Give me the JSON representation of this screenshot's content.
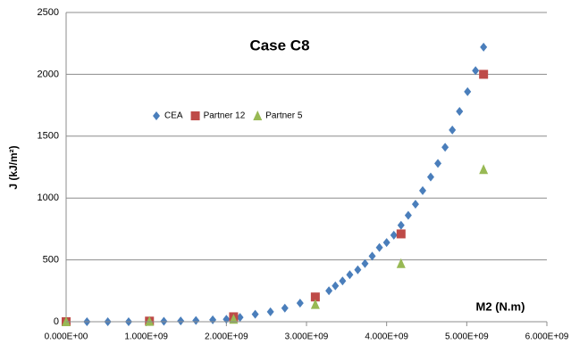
{
  "chart_data": {
    "type": "scatter",
    "title": "Case C8",
    "x_label": "M2 (N.m)",
    "y_label": "J (kJ/m²)",
    "xlim": [
      0,
      6000000000
    ],
    "ylim": [
      0,
      2500
    ],
    "xticks": [
      {
        "value": 0,
        "label": "0.000E+00"
      },
      {
        "value": 1000000000,
        "label": "1.000E+09"
      },
      {
        "value": 2000000000,
        "label": "2.000E+09"
      },
      {
        "value": 3000000000,
        "label": "3.000E+09"
      },
      {
        "value": 4000000000,
        "label": "4.000E+09"
      },
      {
        "value": 5000000000,
        "label": "5.000E+09"
      },
      {
        "value": 6000000000,
        "label": "6.000E+09"
      }
    ],
    "yticks": [
      0,
      500,
      1000,
      1500,
      2000,
      2500
    ],
    "grid": true,
    "legend": "upper left",
    "series": [
      {
        "name": "CEA",
        "color": "#4a7ebb",
        "marker": "diamond",
        "x": [
          0,
          260000000,
          520000000,
          780000000,
          1040000000,
          1220000000,
          1430000000,
          1620000000,
          1830000000,
          2000000000,
          2100000000,
          2170000000,
          2360000000,
          2550000000,
          2730000000,
          2920000000,
          3110000000,
          3280000000,
          3360000000,
          3450000000,
          3540000000,
          3640000000,
          3730000000,
          3820000000,
          3910000000,
          4000000000,
          4090000000,
          4180000000,
          4270000000,
          4360000000,
          4450000000,
          4550000000,
          4640000000,
          4730000000,
          4820000000,
          4910000000,
          5010000000,
          5110000000,
          5210000000
        ],
        "values": [
          0,
          0,
          0,
          0,
          2,
          4,
          6,
          10,
          15,
          20,
          28,
          35,
          60,
          80,
          110,
          150,
          200,
          250,
          290,
          330,
          380,
          420,
          470,
          530,
          600,
          640,
          700,
          780,
          860,
          950,
          1060,
          1170,
          1280,
          1410,
          1550,
          1700,
          1860,
          2030,
          2220
        ]
      },
      {
        "name": "Partner 12",
        "color": "#be4b48",
        "marker": "square",
        "x": [
          0,
          1040000000,
          2090000000,
          3110000000,
          4180000000,
          5210000000
        ],
        "values": [
          0,
          5,
          40,
          200,
          710,
          2000
        ]
      },
      {
        "name": "Partner 5",
        "color": "#98b954",
        "marker": "triangle",
        "x": [
          0,
          1040000000,
          2090000000,
          3110000000,
          4180000000,
          5210000000
        ],
        "values": [
          0,
          3,
          20,
          140,
          470,
          1230
        ]
      }
    ]
  }
}
